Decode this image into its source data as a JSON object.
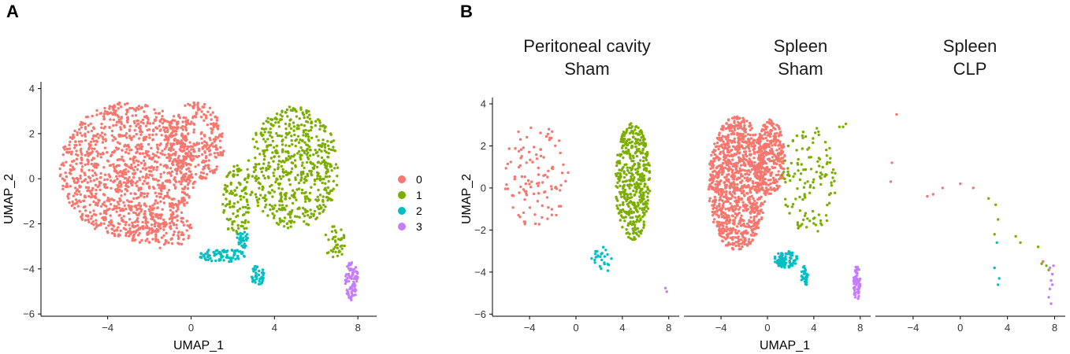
{
  "panels": {
    "A": "A",
    "B": "B"
  },
  "legend": {
    "items": [
      {
        "label": "0",
        "color": "#F8766D"
      },
      {
        "label": "1",
        "color": "#7CAE00"
      },
      {
        "label": "2",
        "color": "#00BFC4"
      },
      {
        "label": "3",
        "color": "#C77CFF"
      }
    ]
  },
  "chart_data": [
    {
      "type": "scatter",
      "panel": "A",
      "title": "",
      "xlabel": "UMAP_1",
      "ylabel": "UMAP_2",
      "xlim": [
        -7.2,
        8.9
      ],
      "ylim": [
        -6.1,
        4.3
      ],
      "xticks": [
        -4,
        0,
        4,
        8
      ],
      "yticks": [
        -6,
        -4,
        -2,
        0,
        2,
        4
      ],
      "series": [
        {
          "name": "0",
          "color": "#F8766D",
          "approx_points": 1600,
          "regions": [
            {
              "shape": "ellipse",
              "cx": -3.0,
              "cy": 0.4,
              "rx": 3.3,
              "ry": 3.0
            },
            {
              "shape": "ellipse",
              "cx": 0.2,
              "cy": 1.6,
              "rx": 1.4,
              "ry": 1.8
            },
            {
              "shape": "ellipse",
              "cx": -1.5,
              "cy": -2.3,
              "rx": 1.6,
              "ry": 0.8
            }
          ]
        },
        {
          "name": "1",
          "color": "#7CAE00",
          "approx_points": 750,
          "regions": [
            {
              "shape": "ellipse",
              "cx": 4.9,
              "cy": 0.5,
              "rx": 2.2,
              "ry": 2.7
            },
            {
              "shape": "ellipse",
              "cx": 2.2,
              "cy": -1.0,
              "rx": 0.7,
              "ry": 1.6
            },
            {
              "shape": "ellipse",
              "cx": 6.9,
              "cy": -2.8,
              "rx": 0.5,
              "ry": 0.8
            }
          ]
        },
        {
          "name": "2",
          "color": "#00BFC4",
          "approx_points": 150,
          "regions": [
            {
              "shape": "ellipse",
              "cx": 1.5,
              "cy": -3.4,
              "rx": 1.1,
              "ry": 0.3
            },
            {
              "shape": "ellipse",
              "cx": 3.2,
              "cy": -4.3,
              "rx": 0.3,
              "ry": 0.5
            },
            {
              "shape": "ellipse",
              "cx": 2.5,
              "cy": -2.7,
              "rx": 0.3,
              "ry": 0.4
            }
          ]
        },
        {
          "name": "3",
          "color": "#C77CFF",
          "approx_points": 80,
          "regions": [
            {
              "shape": "ellipse",
              "cx": 7.7,
              "cy": -4.5,
              "rx": 0.3,
              "ry": 0.9
            }
          ]
        }
      ]
    },
    {
      "type": "scatter",
      "panel": "B",
      "title": "Peritoneal cavity Sham",
      "title_lines": [
        "Peritoneal cavity",
        "Sham"
      ],
      "xlim": [
        -7.2,
        8.9
      ],
      "ylim": [
        -6.1,
        4.3
      ],
      "xticks": [
        -4,
        0,
        4,
        8
      ],
      "yticks": [
        -6,
        -4,
        -2,
        0,
        2,
        4
      ],
      "series": [
        {
          "name": "0",
          "color": "#F8766D",
          "approx_points": 110,
          "regions": [
            {
              "shape": "ellipse",
              "cx": -3.4,
              "cy": 0.6,
              "rx": 2.8,
              "ry": 2.5
            }
          ]
        },
        {
          "name": "1",
          "color": "#7CAE00",
          "approx_points": 450,
          "regions": [
            {
              "shape": "ellipse",
              "cx": 4.9,
              "cy": 0.3,
              "rx": 1.5,
              "ry": 2.8
            }
          ]
        },
        {
          "name": "2",
          "color": "#00BFC4",
          "approx_points": 25,
          "regions": [
            {
              "shape": "ellipse",
              "cx": 2.3,
              "cy": -3.4,
              "rx": 1.0,
              "ry": 0.6
            }
          ]
        },
        {
          "name": "3",
          "color": "#C77CFF",
          "approx_points": 2,
          "regions": [
            {
              "shape": "ellipse",
              "cx": 7.8,
              "cy": -4.8,
              "rx": 0.2,
              "ry": 0.2
            }
          ]
        }
      ]
    },
    {
      "type": "scatter",
      "panel": "B",
      "title": "Spleen Sham",
      "title_lines": [
        "Spleen",
        "Sham"
      ],
      "xlim": [
        -7.2,
        8.9
      ],
      "ylim": [
        -6.1,
        4.3
      ],
      "xticks": [
        -4,
        0,
        4,
        8
      ],
      "yticks": [],
      "series": [
        {
          "name": "0",
          "color": "#F8766D",
          "approx_points": 1300,
          "regions": [
            {
              "shape": "ellipse",
              "cx": -2.6,
              "cy": 0.2,
              "rx": 2.5,
              "ry": 3.2
            },
            {
              "shape": "ellipse",
              "cx": 0.3,
              "cy": 1.5,
              "rx": 1.2,
              "ry": 1.8
            }
          ]
        },
        {
          "name": "1",
          "color": "#7CAE00",
          "approx_points": 130,
          "regions": [
            {
              "shape": "ellipse",
              "cx": 3.6,
              "cy": 0.4,
              "rx": 2.4,
              "ry": 2.6
            },
            {
              "shape": "ellipse",
              "cx": 6.6,
              "cy": 3.0,
              "rx": 0.5,
              "ry": 0.3
            }
          ]
        },
        {
          "name": "2",
          "color": "#00BFC4",
          "approx_points": 110,
          "regions": [
            {
              "shape": "ellipse",
              "cx": 1.6,
              "cy": -3.4,
              "rx": 1.0,
              "ry": 0.4
            },
            {
              "shape": "ellipse",
              "cx": 3.2,
              "cy": -4.2,
              "rx": 0.3,
              "ry": 0.5
            }
          ]
        },
        {
          "name": "3",
          "color": "#C77CFF",
          "approx_points": 60,
          "regions": [
            {
              "shape": "ellipse",
              "cx": 7.7,
              "cy": -4.5,
              "rx": 0.3,
              "ry": 0.9
            }
          ]
        }
      ]
    },
    {
      "type": "scatter",
      "panel": "B",
      "title": "Spleen CLP",
      "title_lines": [
        "Spleen",
        "CLP"
      ],
      "xlim": [
        -7.2,
        8.9
      ],
      "ylim": [
        -6.1,
        4.3
      ],
      "xticks": [
        -4,
        0,
        4,
        8
      ],
      "yticks": [],
      "series": [
        {
          "name": "0",
          "color": "#F8766D",
          "approx_points": 8,
          "points": [
            [
              -5.4,
              3.5
            ],
            [
              -5.8,
              1.2
            ],
            [
              -5.9,
              0.3
            ],
            [
              -2.8,
              -0.4
            ],
            [
              -2.3,
              -0.3
            ],
            [
              -1.5,
              0.0
            ],
            [
              0.0,
              0.2
            ],
            [
              1.1,
              0.0
            ],
            [
              7.0,
              -3.5
            ]
          ]
        },
        {
          "name": "1",
          "color": "#7CAE00",
          "approx_points": 12,
          "points": [
            [
              2.4,
              -0.5
            ],
            [
              3.0,
              -0.8
            ],
            [
              3.2,
              -1.5
            ],
            [
              2.9,
              -2.2
            ],
            [
              4.7,
              -2.3
            ],
            [
              5.1,
              -2.6
            ],
            [
              6.6,
              -2.8
            ],
            [
              6.9,
              -3.6
            ],
            [
              7.3,
              -3.7
            ],
            [
              7.5,
              -3.9
            ]
          ]
        },
        {
          "name": "2",
          "color": "#00BFC4",
          "approx_points": 4,
          "points": [
            [
              3.1,
              -2.6
            ],
            [
              2.9,
              -3.8
            ],
            [
              3.3,
              -4.3
            ],
            [
              3.2,
              -4.6
            ]
          ]
        },
        {
          "name": "3",
          "color": "#C77CFF",
          "approx_points": 9,
          "points": [
            [
              7.6,
              -3.8
            ],
            [
              7.8,
              -4.1
            ],
            [
              7.7,
              -4.4
            ],
            [
              7.6,
              -4.8
            ],
            [
              7.5,
              -5.2
            ],
            [
              7.7,
              -5.5
            ],
            [
              7.8,
              -4.6
            ],
            [
              7.9,
              -3.7
            ]
          ]
        }
      ]
    }
  ],
  "shared_axis": {
    "xlabel": "UMAP_1",
    "ylabel": "UMAP_2"
  }
}
